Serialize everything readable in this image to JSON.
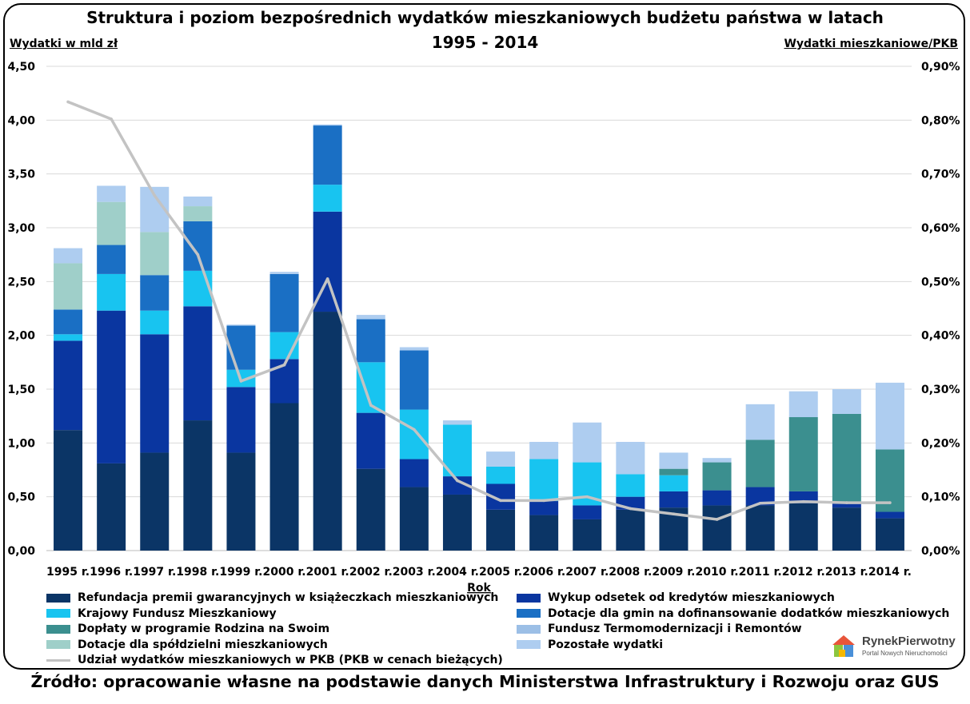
{
  "chart_data": {
    "type": "bar",
    "stacked": true,
    "title": "Struktura i poziom bezpośrednich wydatków mieszkaniowych budżetu państwa w latach",
    "title_line2": "1995 - 2014",
    "ylabel": "Wydatki w mld zł",
    "y2label": "Wydatki mieszkaniowe/PKB",
    "xlabel": "Rok",
    "ylim": [
      0,
      4.5
    ],
    "y2lim": [
      0,
      0.9
    ],
    "y_ticks": [
      "0,00",
      "0,50",
      "1,00",
      "1,50",
      "2,00",
      "2,50",
      "3,00",
      "3,50",
      "4,00",
      "4,50"
    ],
    "y2_ticks": [
      "0,00%",
      "0,10%",
      "0,20%",
      "0,30%",
      "0,40%",
      "0,50%",
      "0,60%",
      "0,70%",
      "0,80%",
      "0,90%"
    ],
    "grid": true,
    "legend_position": "bottom",
    "categories": [
      "1995 r.",
      "1996 r.",
      "1997 r.",
      "1998 r.",
      "1999 r.",
      "2000 r.",
      "2001 r.",
      "2002 r.",
      "2003 r.",
      "2004 r.",
      "2005 r.",
      "2006 r.",
      "2007 r.",
      "2008 r.",
      "2009 r.",
      "2010 r.",
      "2011 r.",
      "2012 r.",
      "2013 r.",
      "2014 r."
    ],
    "series": [
      {
        "name": "Refundacja premii gwarancyjnych w książeczkach mieszkaniowych",
        "color": "#0b3566",
        "values": [
          1.12,
          0.81,
          0.91,
          1.21,
          0.91,
          1.37,
          2.22,
          0.76,
          0.59,
          0.52,
          0.38,
          0.33,
          0.29,
          0.38,
          0.4,
          0.42,
          0.42,
          0.44,
          0.4,
          0.3
        ]
      },
      {
        "name": "Wykup odsetek od kredytów mieszkaniowych",
        "color": "#0a36a0",
        "values": [
          0.83,
          1.42,
          1.1,
          1.06,
          0.61,
          0.41,
          0.93,
          0.52,
          0.26,
          0.17,
          0.24,
          0.13,
          0.13,
          0.12,
          0.15,
          0.14,
          0.17,
          0.11,
          0.04,
          0.06
        ]
      },
      {
        "name": "Krajowy Fundusz Mieszkaniowy",
        "color": "#18c4f0",
        "values": [
          0.06,
          0.34,
          0.22,
          0.33,
          0.16,
          0.25,
          0.25,
          0.47,
          0.46,
          0.48,
          0.16,
          0.39,
          0.4,
          0.21,
          0.15,
          0.0,
          0.0,
          0.0,
          0.0,
          0.0
        ]
      },
      {
        "name": "Dotacje dla gmin na dofinansowanie dodatków mieszkaniowych",
        "color": "#1a6fc4",
        "values": [
          0.23,
          0.27,
          0.33,
          0.46,
          0.41,
          0.54,
          0.55,
          0.4,
          0.55,
          0.0,
          0.0,
          0.0,
          0.0,
          0.0,
          0.0,
          0.0,
          0.0,
          0.0,
          0.0,
          0.0
        ]
      },
      {
        "name": "Dopłaty w programie Rodzina na Swoim",
        "color": "#3b8f8f",
        "values": [
          0.0,
          0.0,
          0.0,
          0.0,
          0.0,
          0.0,
          0.0,
          0.0,
          0.0,
          0.0,
          0.0,
          0.0,
          0.0,
          0.0,
          0.06,
          0.26,
          0.44,
          0.69,
          0.83,
          0.58
        ]
      },
      {
        "name": "Fundusz Termomodernizacji i Remontów",
        "color": "#9cbfe6",
        "values": [
          0.0,
          0.0,
          0.0,
          0.0,
          0.0,
          0.0,
          0.0,
          0.0,
          0.0,
          0.0,
          0.0,
          0.0,
          0.0,
          0.0,
          0.0,
          0.0,
          0.0,
          0.0,
          0.0,
          0.0
        ]
      },
      {
        "name": "Dotacje dla spółdzielni mieszkaniowych",
        "color": "#9fcfc9",
        "values": [
          0.43,
          0.4,
          0.4,
          0.14,
          0.0,
          0.0,
          0.0,
          0.0,
          0.0,
          0.0,
          0.0,
          0.0,
          0.0,
          0.0,
          0.0,
          0.0,
          0.0,
          0.0,
          0.0,
          0.0
        ]
      },
      {
        "name": "Pozostałe wydatki",
        "color": "#aecdf0",
        "values": [
          0.14,
          0.15,
          0.42,
          0.09,
          0.01,
          0.02,
          0.01,
          0.04,
          0.03,
          0.04,
          0.14,
          0.16,
          0.37,
          0.3,
          0.15,
          0.04,
          0.33,
          0.24,
          0.23,
          0.62
        ]
      }
    ],
    "line_series": {
      "name": "Udział wydatków mieszkaniowych w PKB (PKB w cenach bieżących)",
      "color": "#c3c3c3",
      "axis": "right",
      "values": [
        0.834,
        0.802,
        0.66,
        0.55,
        0.315,
        0.345,
        0.505,
        0.27,
        0.225,
        0.13,
        0.093,
        0.093,
        0.1,
        0.078,
        0.068,
        0.058,
        0.088,
        0.091,
        0.089,
        0.089
      ]
    }
  },
  "legend": {
    "items": [
      {
        "label": "Refundacja premii gwarancyjnych w książeczkach mieszkaniowych",
        "color": "#0b3566",
        "kind": "box"
      },
      {
        "label": "Wykup odsetek od kredytów mieszkaniowych",
        "color": "#0a36a0",
        "kind": "box"
      },
      {
        "label": "Krajowy Fundusz Mieszkaniowy",
        "color": "#18c4f0",
        "kind": "box"
      },
      {
        "label": "Dotacje dla gmin na dofinansowanie dodatków mieszkaniowych",
        "color": "#1a6fc4",
        "kind": "box"
      },
      {
        "label": "Dopłaty w programie Rodzina na Swoim",
        "color": "#3b8f8f",
        "kind": "box"
      },
      {
        "label": "Fundusz Termomodernizacji i Remontów",
        "color": "#9cbfe6",
        "kind": "box"
      },
      {
        "label": "Dotacje dla spółdzielni mieszkaniowych",
        "color": "#9fcfc9",
        "kind": "box"
      },
      {
        "label": "Pozostałe wydatki",
        "color": "#aecdf0",
        "kind": "box"
      },
      {
        "label": "Udział wydatków mieszkaniowych w PKB (PKB w cenach bieżących)",
        "color": "#c3c3c3",
        "kind": "line"
      }
    ]
  },
  "logo": {
    "name": "RynekPierwotny",
    "tagline": "Portal Nowych Nieruchomości"
  },
  "source": "Źródło: opracowanie własne na podstawie danych Ministerstwa Infrastruktury i Rozwoju oraz GUS"
}
